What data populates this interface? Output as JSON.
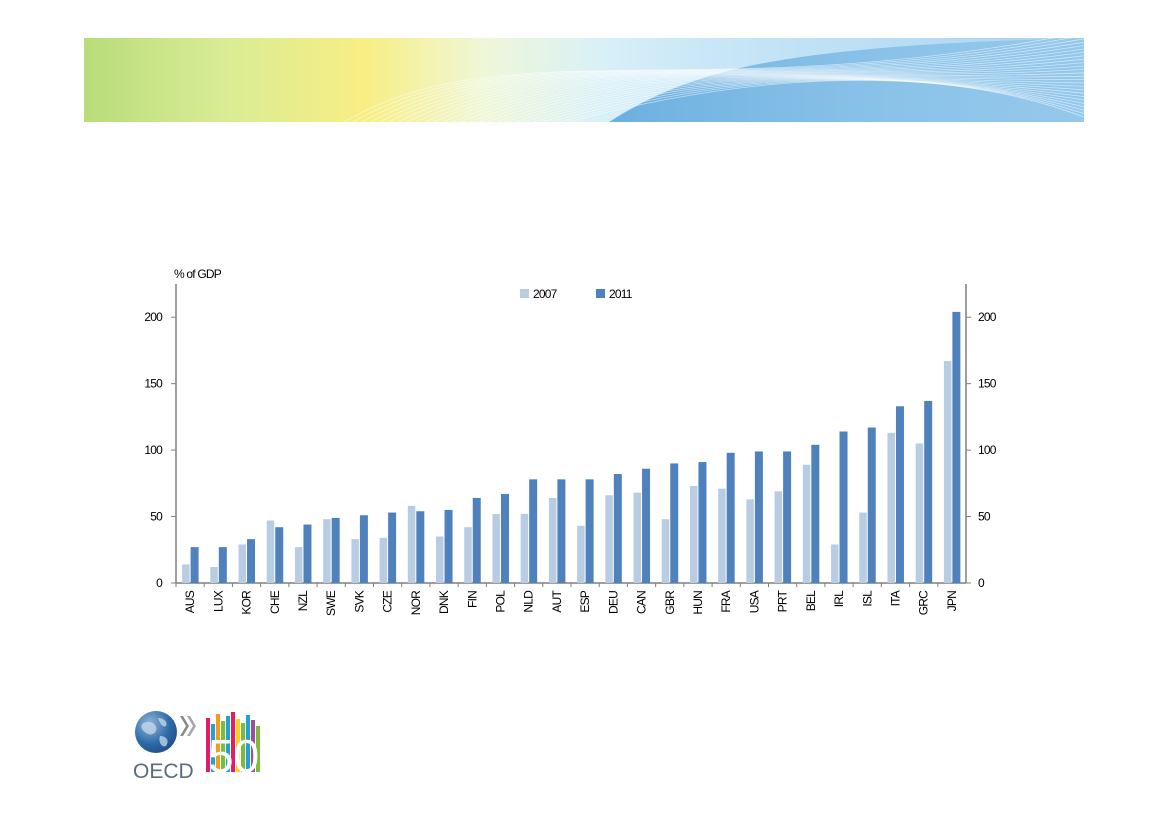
{
  "logo": {
    "org_text": "OECD",
    "anniversary_text": "50"
  },
  "colors": {
    "series_2007": "#b8cce4",
    "series_2011": "#4f81bd"
  },
  "chart_data": {
    "type": "bar",
    "ylabel": "% of GDP",
    "ylim": [
      0,
      225
    ],
    "yticks": [
      0,
      50,
      100,
      150,
      200
    ],
    "grid": false,
    "legend_position": "top-center",
    "categories": [
      "AUS",
      "LUX",
      "KOR",
      "CHE",
      "NZL",
      "SWE",
      "SVK",
      "CZE",
      "NOR",
      "DNK",
      "FIN",
      "POL",
      "NLD",
      "AUT",
      "ESP",
      "DEU",
      "CAN",
      "GBR",
      "HUN",
      "FRA",
      "USA",
      "PRT",
      "BEL",
      "IRL",
      "ISL",
      "ITA",
      "GRC",
      "JPN"
    ],
    "series": [
      {
        "name": "2007",
        "values": [
          14,
          12,
          29,
          47,
          27,
          48,
          33,
          34,
          58,
          35,
          42,
          52,
          52,
          64,
          43,
          66,
          68,
          48,
          73,
          71,
          63,
          69,
          89,
          29,
          53,
          113,
          105,
          167
        ]
      },
      {
        "name": "2011",
        "values": [
          27,
          27,
          33,
          42,
          44,
          49,
          51,
          53,
          54,
          55,
          64,
          67,
          78,
          78,
          78,
          82,
          86,
          90,
          91,
          98,
          99,
          99,
          104,
          114,
          117,
          133,
          137,
          204
        ]
      }
    ]
  }
}
